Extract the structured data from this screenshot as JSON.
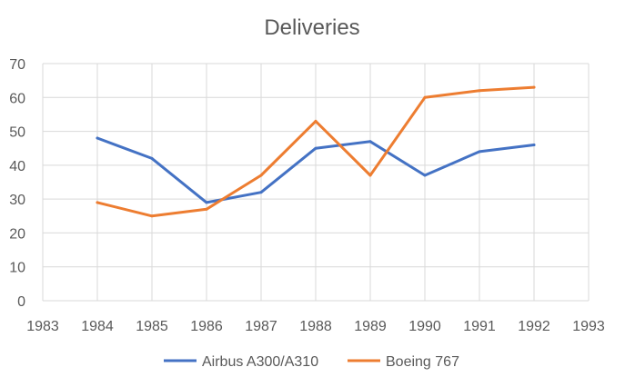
{
  "chart_data": {
    "type": "line",
    "title": "Deliveries",
    "xlabel": "",
    "ylabel": "",
    "xlim": [
      1983,
      1993
    ],
    "ylim": [
      0,
      70
    ],
    "x_ticks": [
      1983,
      1984,
      1985,
      1986,
      1987,
      1988,
      1989,
      1990,
      1991,
      1992,
      1993
    ],
    "y_ticks": [
      0,
      10,
      20,
      30,
      40,
      50,
      60,
      70
    ],
    "grid": true,
    "legend_position": "bottom",
    "series": [
      {
        "name": "Airbus A300/A310",
        "color": "#4472C4",
        "x": [
          1984,
          1985,
          1986,
          1987,
          1988,
          1989,
          1990,
          1991,
          1992
        ],
        "values": [
          48,
          42,
          29,
          32,
          45,
          47,
          37,
          44,
          46
        ]
      },
      {
        "name": "Boeing 767",
        "color": "#ED7D31",
        "x": [
          1984,
          1985,
          1986,
          1987,
          1988,
          1989,
          1990,
          1991,
          1992
        ],
        "values": [
          29,
          25,
          27,
          37,
          53,
          37,
          60,
          62,
          63
        ]
      }
    ]
  }
}
